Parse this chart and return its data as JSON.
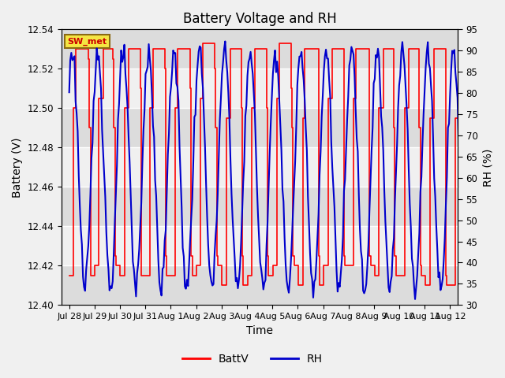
{
  "title": "Battery Voltage and RH",
  "xlabel": "Time",
  "ylabel_left": "Battery (V)",
  "ylabel_right": "RH (%)",
  "ylim_left": [
    12.4,
    12.54
  ],
  "ylim_right": [
    30,
    95
  ],
  "yticks_left": [
    12.4,
    12.42,
    12.44,
    12.46,
    12.48,
    12.5,
    12.52,
    12.54
  ],
  "yticks_right": [
    30,
    35,
    40,
    45,
    50,
    55,
    60,
    65,
    70,
    75,
    80,
    85,
    90,
    95
  ],
  "xtick_labels": [
    "Jul 28",
    "Jul 29",
    "Jul 30",
    "Jul 31",
    "Aug 1",
    "Aug 2",
    "Aug 3",
    "Aug 4",
    "Aug 5",
    "Aug 6",
    "Aug 7",
    "Aug 8",
    "Aug 9",
    "Aug 10",
    "Aug 11",
    "Aug 12"
  ],
  "station_label": "SW_met",
  "batt_color": "#ff0000",
  "rh_color": "#0000cc",
  "legend_batt": "BattV",
  "legend_rh": "RH",
  "fig_facecolor": "#f0f0f0",
  "plot_bg_light": "#f0f0f0",
  "plot_bg_dark": "#dcdcdc",
  "grid_color": "#c8c8c8",
  "title_fontsize": 12,
  "axis_fontsize": 10,
  "tick_fontsize": 8.5
}
